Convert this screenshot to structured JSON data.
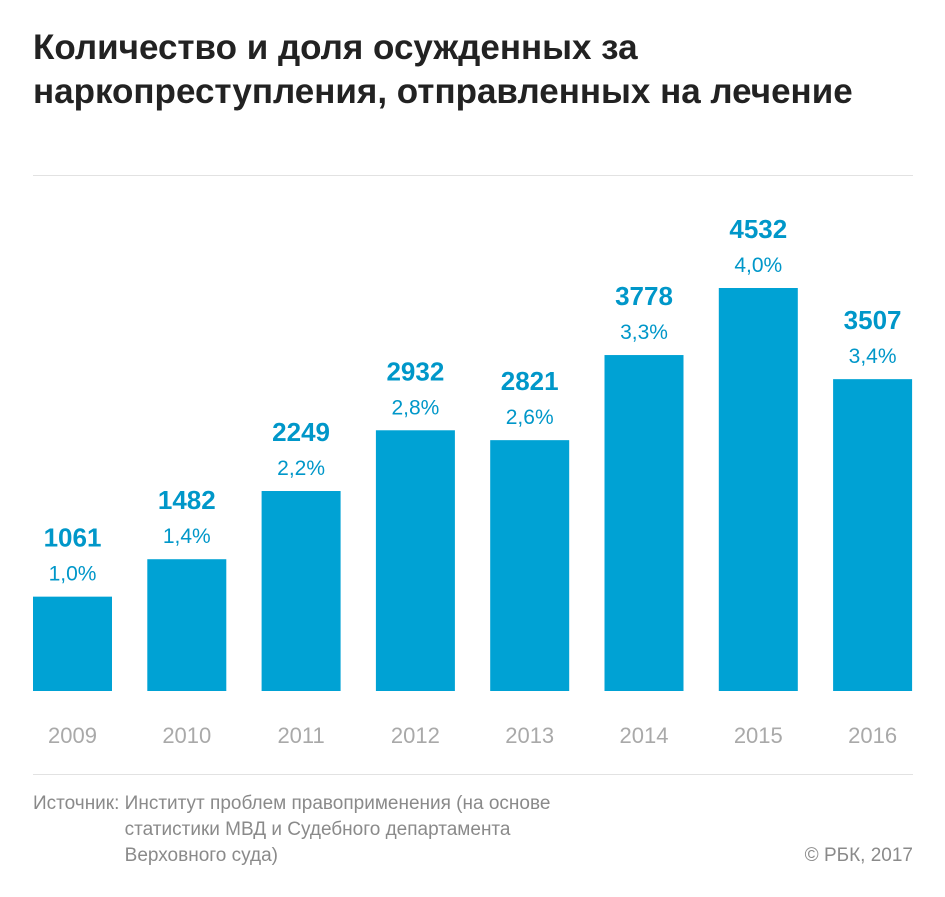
{
  "title": "Количество и доля осужденных за наркопреступления, отправленных на лечение",
  "source_label": "Источник:",
  "source_text": "Институт проблем правоприменения (на основе статистики МВД и Судебного департамента Верховного суда)",
  "copyright": "© РБК, 2017",
  "colors": {
    "bar": "#00a2d4",
    "value_text": "#0097c9",
    "axis_text": "#a9a9a9",
    "title": "#222222"
  },
  "chart_data": {
    "type": "bar",
    "title": "Количество и доля осужденных за наркопреступления, отправленных на лечение",
    "categories": [
      "2009",
      "2010",
      "2011",
      "2012",
      "2013",
      "2014",
      "2015",
      "2016"
    ],
    "series": [
      {
        "values": [
          1061,
          1482,
          2249,
          2932,
          2821,
          3778,
          4532,
          3507
        ]
      }
    ],
    "shares": [
      "1,0%",
      "1,4%",
      "2,2%",
      "2,8%",
      "2,6%",
      "3,3%",
      "4,0%",
      "3,4%"
    ],
    "value_labels": [
      "1061",
      "1482",
      "2249",
      "2932",
      "2821",
      "3778",
      "4532",
      "3507"
    ],
    "xlabel": "",
    "ylabel": "",
    "ylim": [
      0,
      4532
    ],
    "grid": false,
    "legend": "none"
  }
}
